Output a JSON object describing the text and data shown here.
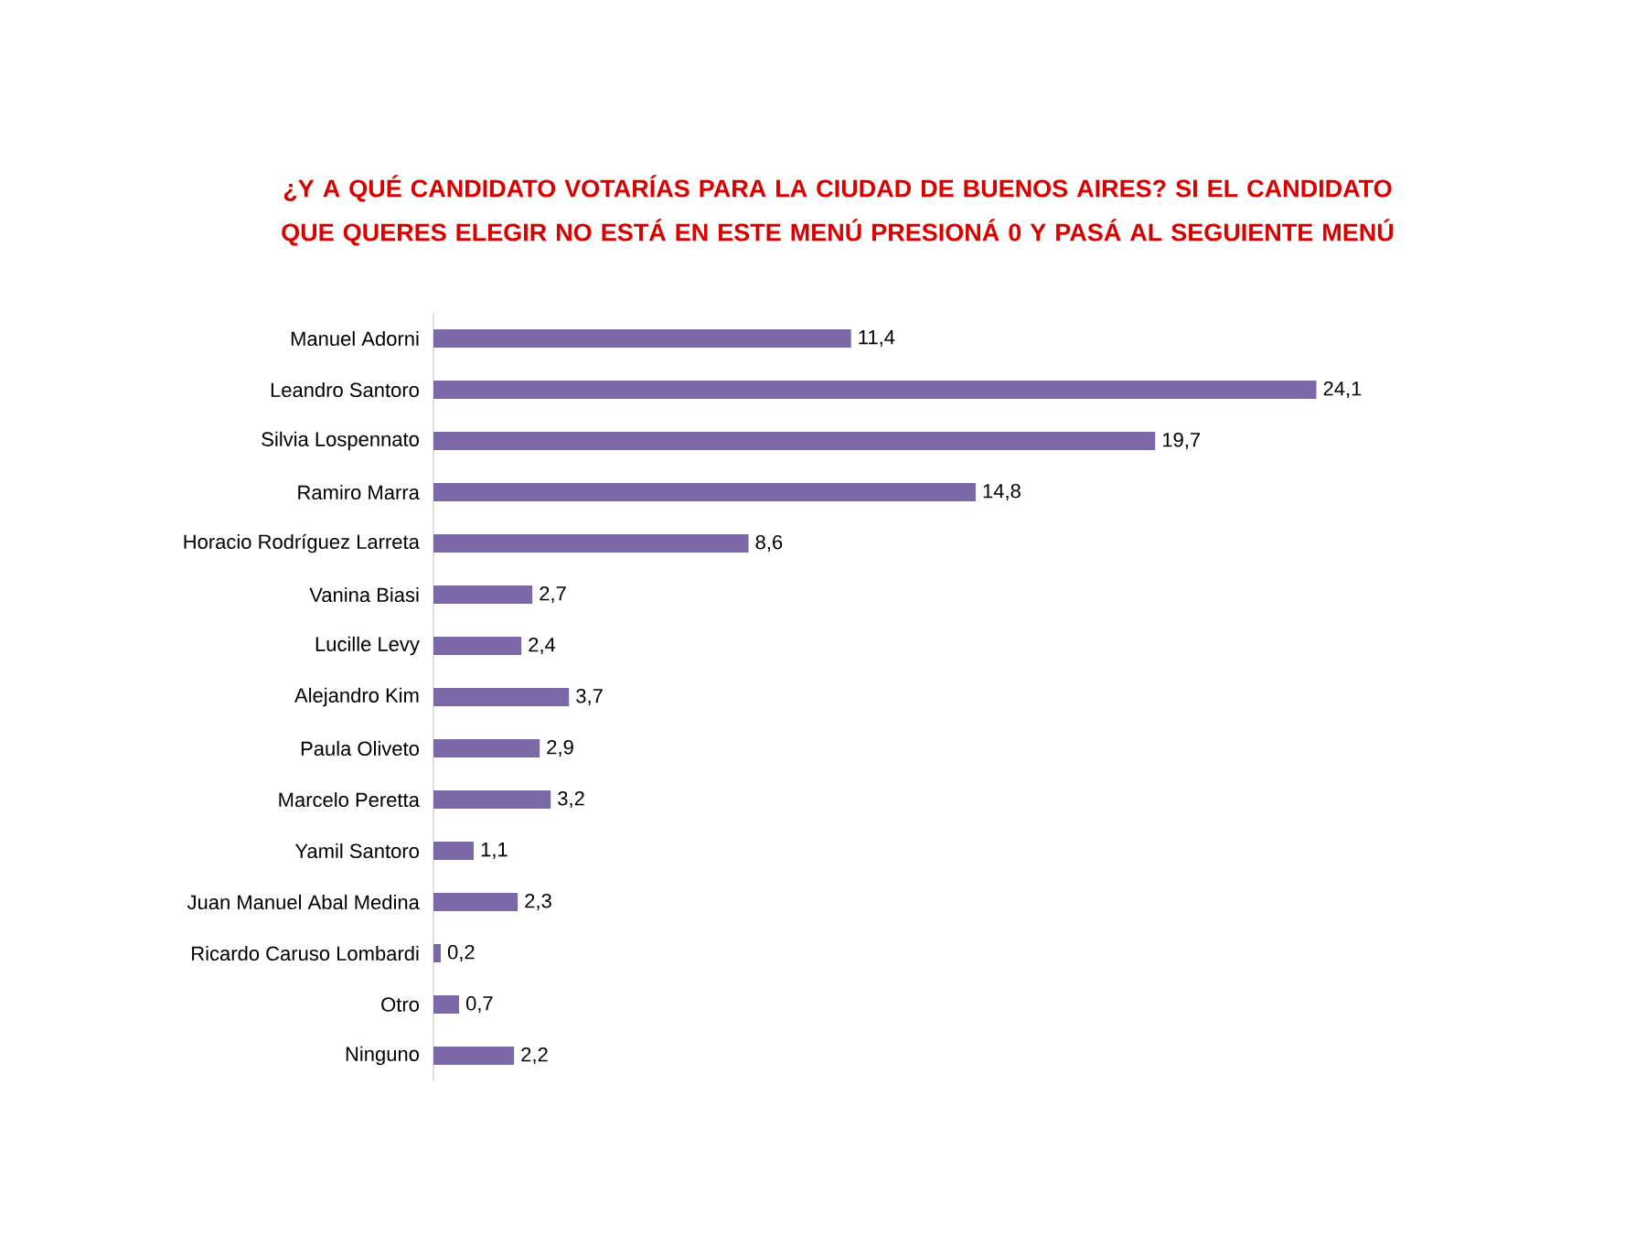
{
  "chart_data": {
    "type": "bar",
    "orientation": "horizontal",
    "title": "¿Y A QUÉ CANDIDATO VOTARÍAS PARA LA CIUDAD DE BUENOS AIRES? SI EL CANDIDATO QUE QUERES ELEGIR NO ESTÁ EN ESTE MENÚ PRESIONÁ 0 Y PASÁ AL SEGUIENTE MENÚ",
    "categories": [
      "Manuel Adorni",
      "Leandro Santoro",
      "Silvia Lospennato",
      "Ramiro Marra",
      "Horacio Rodríguez Larreta",
      "Vanina Biasi",
      "Lucille Levy",
      "Alejandro Kim",
      "Paula Oliveto",
      "Marcelo Peretta",
      "Yamil Santoro",
      "Juan Manuel Abal Medina",
      "Ricardo Caruso Lombardi",
      "Otro",
      "Ninguno"
    ],
    "values": [
      11.4,
      24.1,
      19.7,
      14.8,
      8.6,
      2.7,
      2.4,
      3.7,
      2.9,
      3.2,
      1.1,
      2.3,
      0.2,
      0.7,
      2.2
    ],
    "value_labels": [
      "11,4",
      "24,1",
      "19,7",
      "14,8",
      "8,6",
      "2,7",
      "2,4",
      "3,7",
      "2,9",
      "3,2",
      "1,1",
      "2,3",
      "0,2",
      "0,7",
      "2,2"
    ],
    "color": "#7b68a6"
  }
}
